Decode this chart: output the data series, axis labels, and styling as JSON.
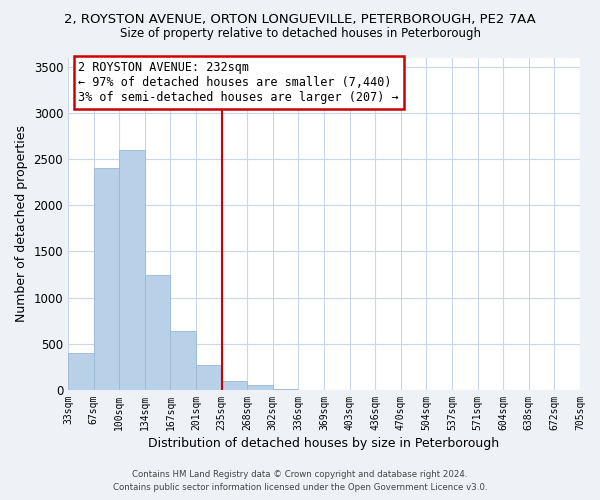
{
  "title_line1": "2, ROYSTON AVENUE, ORTON LONGUEVILLE, PETERBOROUGH, PE2 7AA",
  "title_line2": "Size of property relative to detached houses in Peterborough",
  "xlabel": "Distribution of detached houses by size in Peterborough",
  "ylabel": "Number of detached properties",
  "bar_color": "#b8d0e8",
  "bar_edge_color": "#9ab8d4",
  "bin_labels": [
    "33sqm",
    "67sqm",
    "100sqm",
    "134sqm",
    "167sqm",
    "201sqm",
    "235sqm",
    "268sqm",
    "302sqm",
    "336sqm",
    "369sqm",
    "403sqm",
    "436sqm",
    "470sqm",
    "504sqm",
    "537sqm",
    "571sqm",
    "604sqm",
    "638sqm",
    "672sqm",
    "705sqm"
  ],
  "bar_heights": [
    400,
    2400,
    2600,
    1250,
    640,
    270,
    100,
    55,
    15,
    0,
    0,
    0,
    0,
    0,
    0,
    0,
    0,
    0,
    0,
    0
  ],
  "num_bins": 20,
  "ylim": [
    0,
    3600
  ],
  "yticks": [
    0,
    500,
    1000,
    1500,
    2000,
    2500,
    3000,
    3500
  ],
  "vline_bin": 6,
  "vline_color": "#cc0000",
  "annotation_title": "2 ROYSTON AVENUE: 232sqm",
  "annotation_line1": "← 97% of detached houses are smaller (7,440)",
  "annotation_line2": "3% of semi-detached houses are larger (207) →",
  "annotation_box_color": "#ffffff",
  "annotation_box_edge": "#cc0000",
  "footer_line1": "Contains HM Land Registry data © Crown copyright and database right 2024.",
  "footer_line2": "Contains public sector information licensed under the Open Government Licence v3.0.",
  "background_color": "#eef2f7",
  "plot_background_color": "#ffffff",
  "grid_color": "#c8d8e8"
}
